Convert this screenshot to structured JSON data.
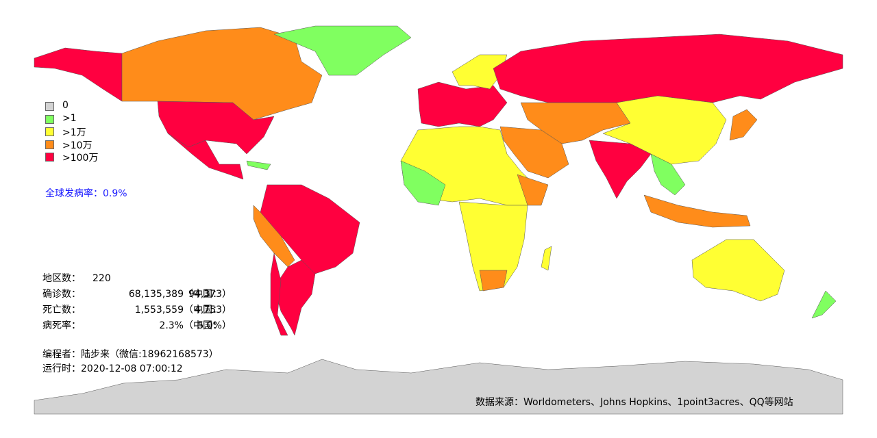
{
  "legend": [
    {
      "label": "0",
      "color": "#d3d3d3"
    },
    {
      "label": ">1",
      "color": "#80ff60"
    },
    {
      "label": ">1万",
      "color": "#ffff33"
    },
    {
      "label": ">10万",
      "color": "#ff8c1a"
    },
    {
      "label": ">100万",
      "color": "#ff0040"
    }
  ],
  "global_rate": "全球发病率：0.9%",
  "stats": [
    [
      "地区数：",
      "220",
      "",
      ""
    ],
    [
      "确诊数：",
      "68,135,389",
      "（中国：",
      "94,373）"
    ],
    [
      "死亡数：",
      "1,553,559",
      "（中国：",
      "4,753）"
    ],
    [
      "病死率：",
      "2.3%",
      "（中国：",
      "5.0%）"
    ]
  ],
  "author": "编程者：陆步来（微信:18962168573）",
  "run_time": "运行时：2020-12-08 07:00:12",
  "source": "数据来源：Worldometers、Johns Hopkins、1point3acres、QQ等网站"
}
